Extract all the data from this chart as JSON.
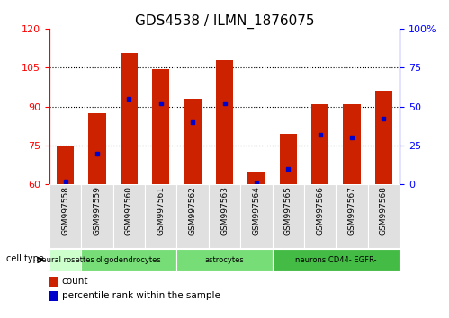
{
  "title": "GDS4538 / ILMN_1876075",
  "samples": [
    "GSM997558",
    "GSM997559",
    "GSM997560",
    "GSM997561",
    "GSM997562",
    "GSM997563",
    "GSM997564",
    "GSM997565",
    "GSM997566",
    "GSM997567",
    "GSM997568"
  ],
  "count_values": [
    74.5,
    87.5,
    110.5,
    104.5,
    93.0,
    108.0,
    65.0,
    79.5,
    91.0,
    91.0,
    96.0
  ],
  "percentile_values": [
    2.0,
    20.0,
    55.0,
    52.0,
    40.0,
    52.0,
    1.0,
    10.0,
    32.0,
    30.0,
    42.0
  ],
  "ylim_left": [
    60,
    120
  ],
  "ylim_right": [
    0,
    100
  ],
  "yticks_left": [
    60,
    75,
    90,
    105,
    120
  ],
  "yticks_right": [
    0,
    25,
    50,
    75,
    100
  ],
  "cell_type_groups": [
    {
      "label": "neural rosettes",
      "start": 0,
      "end": 0,
      "color": "#ccffcc"
    },
    {
      "label": "oligodendrocytes",
      "start": 1,
      "end": 3,
      "color": "#77dd77"
    },
    {
      "label": "astrocytes",
      "start": 4,
      "end": 6,
      "color": "#77dd77"
    },
    {
      "label": "neurons CD44- EGFR-",
      "start": 7,
      "end": 10,
      "color": "#44bb44"
    }
  ],
  "bar_color": "#cc2200",
  "marker_color": "#0000cc",
  "bar_width": 0.55,
  "bg_color": "#ffffff",
  "title_fontsize": 11,
  "tick_fontsize": 8,
  "label_fontsize": 6.5
}
